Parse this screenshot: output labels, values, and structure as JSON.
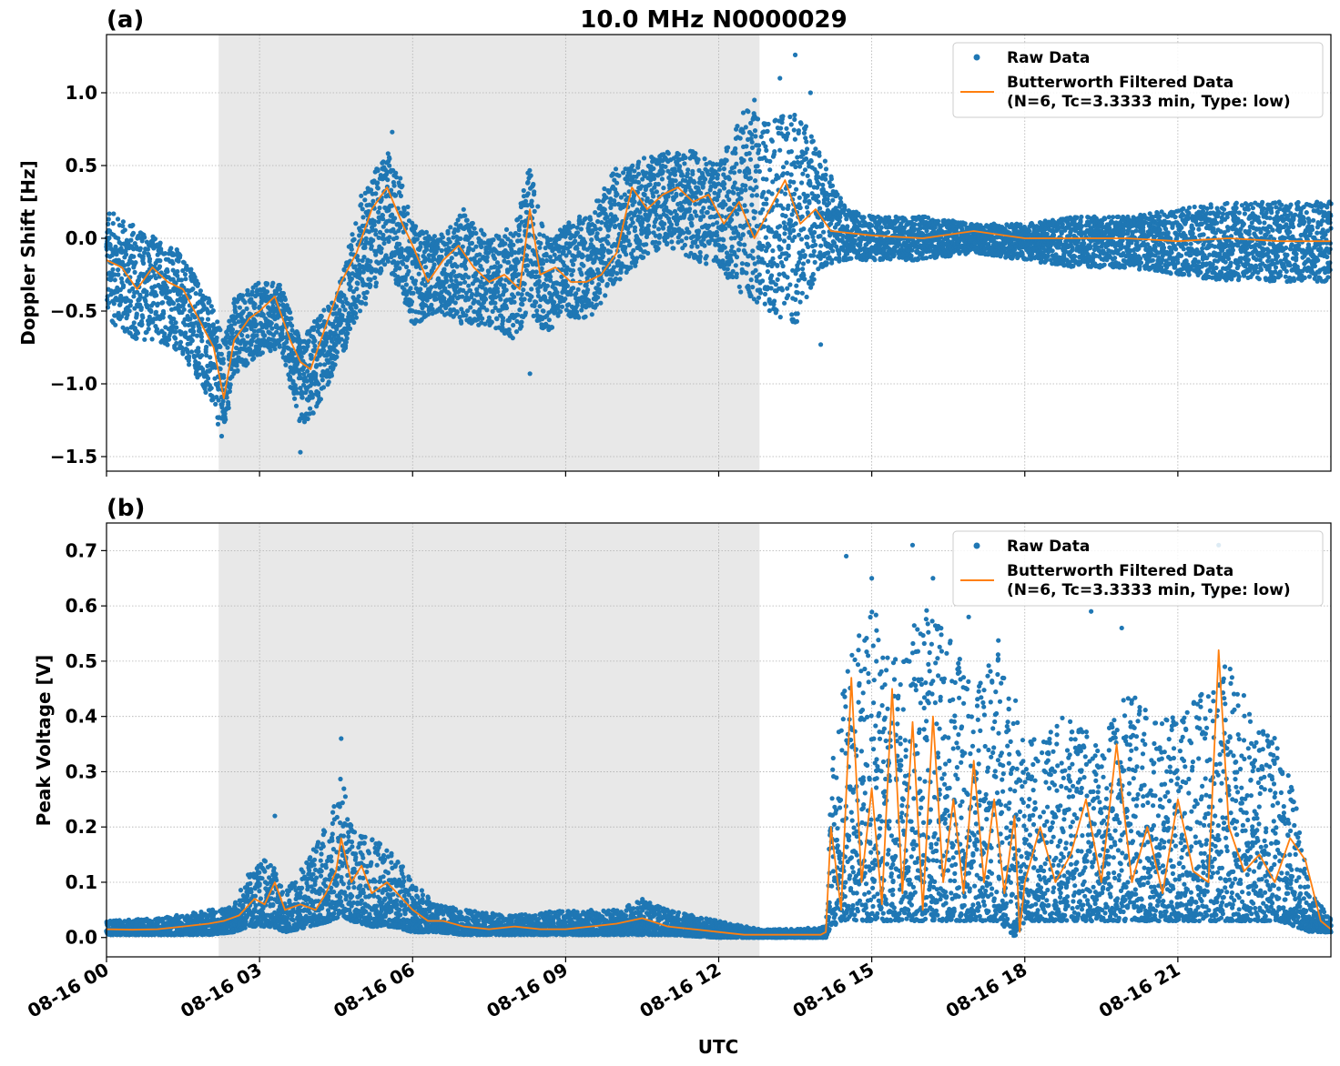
{
  "title": "10.0 MHz N0000029",
  "xlabel": "UTC",
  "x_tick_labels": [
    "08-16 00",
    "08-16 03",
    "08-16 06",
    "08-16 09",
    "08-16 12",
    "08-16 15",
    "08-16 18",
    "08-16 21"
  ],
  "colors": {
    "raw": "#1f77b4",
    "filtered": "#ff7f0e",
    "shade": "#e8e8e8",
    "grid": "#b0b0b0"
  },
  "legend": {
    "raw_label": "Raw Data",
    "filtered_label_1": "Butterworth Filtered Data",
    "filtered_label_2": "(N=6, Tc=3.3333 min, Type: low)",
    "placement": "upper right"
  },
  "chart_data": [
    {
      "panel_label": "(a)",
      "type": "scatter",
      "ylabel": "Doppler Shift [Hz]",
      "xlim_hours": [
        0,
        24
      ],
      "ylim": [
        -1.6,
        1.4
      ],
      "yticks": [
        -1.5,
        -1.0,
        -0.5,
        0.0,
        0.5,
        1.0
      ],
      "ytick_labels": [
        "−1.5",
        "−1.0",
        "−0.5",
        "0.0",
        "0.5",
        "1.0"
      ],
      "shaded_span_hours": [
        2.2,
        12.8
      ],
      "grid": true,
      "series": [
        {
          "name": "Raw Data",
          "x_hours": [
            0,
            0.5,
            1.0,
            1.5,
            2.0,
            2.3,
            2.5,
            3.0,
            3.4,
            3.8,
            4.0,
            4.5,
            5.0,
            5.5,
            5.8,
            6.0,
            6.5,
            7.0,
            7.5,
            8.0,
            8.3,
            8.6,
            9.0,
            9.5,
            10.0,
            10.5,
            11.0,
            11.5,
            12.0,
            12.5,
            13.0,
            13.5,
            14.0,
            14.5,
            15.0,
            16.0,
            17.0,
            18.0,
            19.0,
            20.0,
            21.0,
            22.0,
            23.0,
            24.0
          ],
          "upper": [
            0.2,
            0.1,
            0.0,
            -0.1,
            -0.4,
            -0.7,
            -0.4,
            -0.3,
            -0.3,
            -0.7,
            -0.6,
            -0.4,
            0.3,
            0.6,
            0.4,
            0.1,
            0.0,
            0.2,
            0.0,
            0.1,
            0.5,
            0.0,
            0.1,
            0.2,
            0.5,
            0.55,
            0.6,
            0.6,
            0.5,
            0.9,
            0.8,
            0.9,
            0.6,
            0.2,
            0.15,
            0.15,
            0.1,
            0.1,
            0.15,
            0.15,
            0.2,
            0.25,
            0.25,
            0.25
          ],
          "lower": [
            -0.55,
            -0.7,
            -0.7,
            -0.8,
            -1.1,
            -1.4,
            -0.95,
            -0.8,
            -0.75,
            -1.3,
            -1.25,
            -0.9,
            -0.5,
            -0.2,
            -0.4,
            -0.6,
            -0.5,
            -0.6,
            -0.6,
            -0.7,
            -0.5,
            -0.65,
            -0.55,
            -0.55,
            -0.3,
            -0.15,
            -0.05,
            -0.15,
            -0.2,
            -0.4,
            -0.5,
            -0.6,
            -0.2,
            -0.15,
            -0.15,
            -0.15,
            -0.1,
            -0.15,
            -0.2,
            -0.2,
            -0.25,
            -0.3,
            -0.3,
            -0.3
          ],
          "outliers": [
            [
              5.6,
              0.73
            ],
            [
              8.3,
              -0.93
            ],
            [
              13.5,
              1.26
            ],
            [
              13.8,
              1.0
            ],
            [
              13.2,
              1.1
            ],
            [
              14.0,
              -0.73
            ],
            [
              12.7,
              0.95
            ],
            [
              3.8,
              -1.47
            ]
          ]
        },
        {
          "name": "Butterworth Filtered Data (N=6, Tc=3.3333 min, Type: low)",
          "x_hours": [
            0,
            0.3,
            0.6,
            0.9,
            1.2,
            1.5,
            1.8,
            2.1,
            2.3,
            2.5,
            2.8,
            3.0,
            3.3,
            3.6,
            3.8,
            4.0,
            4.3,
            4.6,
            4.9,
            5.2,
            5.5,
            5.8,
            6.0,
            6.3,
            6.6,
            6.9,
            7.2,
            7.5,
            7.8,
            8.1,
            8.3,
            8.5,
            8.8,
            9.1,
            9.4,
            9.7,
            10.0,
            10.3,
            10.6,
            10.9,
            11.2,
            11.5,
            11.8,
            12.1,
            12.4,
            12.7,
            13.0,
            13.3,
            13.6,
            13.9,
            14.2,
            15.0,
            16.0,
            17.0,
            18.0,
            19.0,
            20.0,
            21.0,
            22.0,
            23.0,
            24.0
          ],
          "values": [
            -0.15,
            -0.2,
            -0.35,
            -0.2,
            -0.3,
            -0.35,
            -0.55,
            -0.75,
            -1.1,
            -0.7,
            -0.55,
            -0.5,
            -0.4,
            -0.7,
            -0.85,
            -0.9,
            -0.6,
            -0.3,
            -0.1,
            0.2,
            0.35,
            0.1,
            -0.05,
            -0.3,
            -0.15,
            -0.05,
            -0.2,
            -0.3,
            -0.25,
            -0.35,
            0.2,
            -0.25,
            -0.2,
            -0.3,
            -0.3,
            -0.25,
            -0.1,
            0.35,
            0.2,
            0.3,
            0.35,
            0.25,
            0.3,
            0.1,
            0.25,
            0.0,
            0.2,
            0.4,
            0.1,
            0.2,
            0.05,
            0.02,
            0.0,
            0.05,
            0.0,
            0.0,
            0.0,
            -0.02,
            0.0,
            -0.02,
            -0.02
          ]
        }
      ]
    },
    {
      "panel_label": "(b)",
      "type": "scatter",
      "ylabel": "Peak Voltage [V]",
      "xlim_hours": [
        0,
        24
      ],
      "ylim": [
        -0.035,
        0.75
      ],
      "yticks": [
        0.0,
        0.1,
        0.2,
        0.3,
        0.4,
        0.5,
        0.6,
        0.7
      ],
      "ytick_labels": [
        "0.0",
        "0.1",
        "0.2",
        "0.3",
        "0.4",
        "0.5",
        "0.6",
        "0.7"
      ],
      "shaded_span_hours": [
        2.2,
        12.8
      ],
      "grid": true,
      "series": [
        {
          "name": "Raw Data",
          "x_hours": [
            0,
            1.0,
            2.0,
            2.5,
            2.8,
            3.2,
            3.5,
            4.0,
            4.4,
            4.6,
            4.8,
            5.2,
            5.6,
            6.0,
            6.5,
            7.0,
            8.0,
            9.0,
            10.0,
            10.5,
            11.0,
            12.0,
            12.8,
            13.5,
            14.1,
            14.2,
            14.5,
            15.0,
            15.5,
            16.0,
            16.5,
            17.0,
            17.5,
            17.8,
            18.0,
            18.5,
            19.0,
            19.5,
            20.0,
            20.5,
            21.0,
            21.5,
            22.0,
            22.5,
            23.0,
            23.3,
            23.6,
            24.0
          ],
          "upper": [
            0.03,
            0.035,
            0.05,
            0.06,
            0.12,
            0.15,
            0.08,
            0.15,
            0.22,
            0.3,
            0.2,
            0.18,
            0.16,
            0.1,
            0.06,
            0.05,
            0.04,
            0.05,
            0.05,
            0.07,
            0.05,
            0.03,
            0.015,
            0.015,
            0.02,
            0.3,
            0.5,
            0.6,
            0.5,
            0.6,
            0.55,
            0.45,
            0.55,
            0.45,
            0.35,
            0.4,
            0.4,
            0.35,
            0.45,
            0.4,
            0.4,
            0.45,
            0.5,
            0.4,
            0.35,
            0.25,
            0.08,
            0.04
          ],
          "lower": [
            0.005,
            0.005,
            0.005,
            0.01,
            0.02,
            0.02,
            0.01,
            0.02,
            0.03,
            0.04,
            0.03,
            0.02,
            0.02,
            0.01,
            0.01,
            0.005,
            0.005,
            0.005,
            0.005,
            0.005,
            0.005,
            0.0,
            0.0,
            0.0,
            0.0,
            0.02,
            0.03,
            0.03,
            0.03,
            0.03,
            0.03,
            0.03,
            0.03,
            0.0,
            0.03,
            0.03,
            0.03,
            0.03,
            0.03,
            0.03,
            0.03,
            0.03,
            0.03,
            0.03,
            0.03,
            0.02,
            0.01,
            0.01
          ],
          "outliers": [
            [
              4.6,
              0.36
            ],
            [
              3.3,
              0.22
            ],
            [
              14.5,
              0.69
            ],
            [
              15.0,
              0.65
            ],
            [
              15.8,
              0.71
            ],
            [
              16.2,
              0.65
            ],
            [
              16.9,
              0.58
            ],
            [
              19.3,
              0.59
            ],
            [
              19.9,
              0.56
            ],
            [
              21.8,
              0.71
            ],
            [
              21.7,
              0.62
            ]
          ]
        },
        {
          "name": "Butterworth Filtered Data (N=6, Tc=3.3333 min, Type: low)",
          "x_hours": [
            0,
            0.5,
            1.0,
            1.5,
            2.0,
            2.3,
            2.6,
            2.9,
            3.1,
            3.3,
            3.5,
            3.8,
            4.1,
            4.3,
            4.5,
            4.6,
            4.8,
            5.0,
            5.2,
            5.5,
            5.8,
            6.0,
            6.3,
            6.6,
            7.0,
            7.5,
            8.0,
            8.5,
            9.0,
            9.5,
            10.0,
            10.5,
            11.0,
            11.5,
            12.0,
            12.5,
            13.0,
            13.5,
            14.0,
            14.1,
            14.2,
            14.4,
            14.6,
            14.8,
            15.0,
            15.2,
            15.4,
            15.6,
            15.8,
            16.0,
            16.2,
            16.4,
            16.6,
            16.8,
            17.0,
            17.2,
            17.4,
            17.6,
            17.8,
            17.9,
            18.0,
            18.3,
            18.6,
            18.9,
            19.2,
            19.5,
            19.8,
            20.1,
            20.4,
            20.7,
            21.0,
            21.3,
            21.6,
            21.8,
            22.0,
            22.3,
            22.6,
            22.9,
            23.2,
            23.5,
            23.8,
            24.0
          ],
          "values": [
            0.015,
            0.014,
            0.015,
            0.02,
            0.025,
            0.03,
            0.04,
            0.07,
            0.06,
            0.1,
            0.05,
            0.06,
            0.05,
            0.08,
            0.12,
            0.18,
            0.1,
            0.13,
            0.08,
            0.1,
            0.07,
            0.05,
            0.03,
            0.03,
            0.02,
            0.015,
            0.02,
            0.015,
            0.015,
            0.02,
            0.025,
            0.035,
            0.02,
            0.015,
            0.01,
            0.005,
            0.005,
            0.005,
            0.005,
            0.01,
            0.2,
            0.05,
            0.47,
            0.1,
            0.27,
            0.06,
            0.45,
            0.08,
            0.39,
            0.05,
            0.4,
            0.1,
            0.25,
            0.08,
            0.32,
            0.1,
            0.25,
            0.08,
            0.22,
            0.01,
            0.1,
            0.2,
            0.1,
            0.15,
            0.25,
            0.1,
            0.35,
            0.1,
            0.2,
            0.08,
            0.25,
            0.12,
            0.1,
            0.52,
            0.2,
            0.12,
            0.15,
            0.1,
            0.18,
            0.14,
            0.03,
            0.015
          ]
        }
      ]
    }
  ]
}
